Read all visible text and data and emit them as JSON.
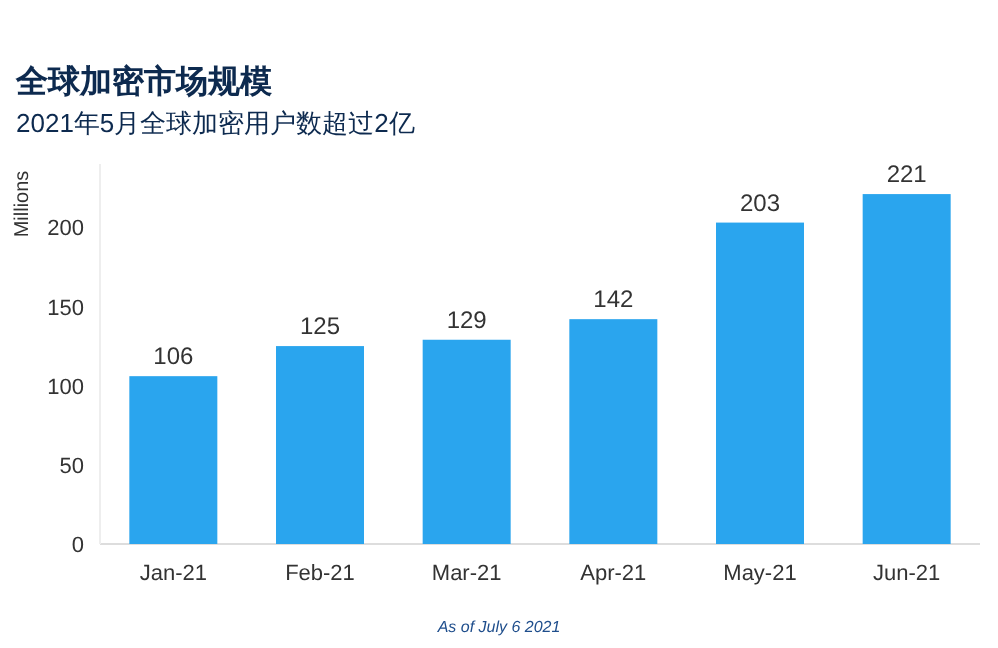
{
  "chart_data": {
    "type": "bar",
    "title": "全球加密市场规模",
    "subtitle": "2021年5月全球加密用户数超过2亿",
    "ylabel": "Millions",
    "categories": [
      "Jan-21",
      "Feb-21",
      "Mar-21",
      "Apr-21",
      "May-21",
      "Jun-21"
    ],
    "values": [
      106,
      125,
      129,
      142,
      203,
      221
    ],
    "color": "#2aa5ee",
    "ylim": [
      0,
      240
    ],
    "yticks": [
      0,
      50,
      100,
      150,
      200
    ],
    "data_labels": true,
    "annotations": [
      "As of July 6 2021"
    ]
  }
}
